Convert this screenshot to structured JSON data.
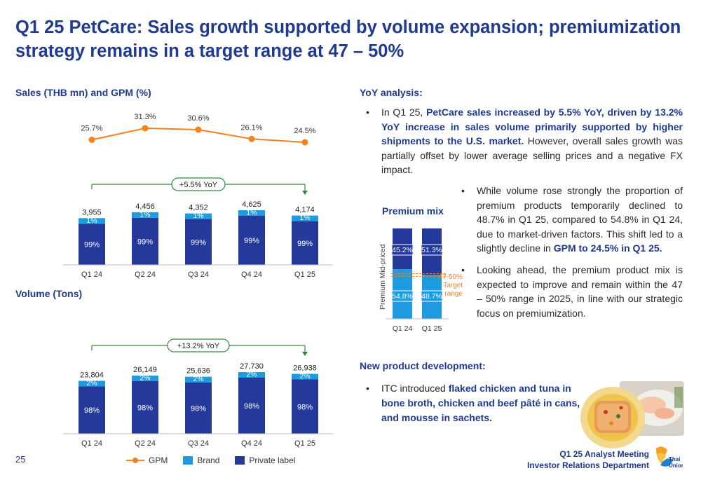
{
  "page": {
    "title": "Q1 25 PetCare: Sales growth supported by volume expansion; premiumization strategy remains in a target range at 47 – 50%",
    "page_number": "25",
    "footer_line1": "Q1 25 Analyst Meeting",
    "footer_line2": "Investor Relations Department",
    "logo_text": "Thai Union"
  },
  "left": {
    "sales_title": "Sales (THB mn) and GPM (%)",
    "volume_title": "Volume (Tons)",
    "legend": [
      "GPM",
      "Brand",
      "Private label"
    ]
  },
  "chart_data": [
    {
      "type": "line",
      "name": "gpm",
      "categories": [
        "Q1 24",
        "Q2 24",
        "Q3 24",
        "Q4 24",
        "Q1 25"
      ],
      "series": [
        {
          "name": "GPM",
          "values": [
            25.7,
            31.3,
            30.6,
            26.1,
            24.5
          ],
          "labels": [
            "25.7%",
            "31.3%",
            "30.6%",
            "26.1%",
            "24.5%"
          ]
        }
      ]
    },
    {
      "type": "bar",
      "name": "sales",
      "categories": [
        "Q1 24",
        "Q2 24",
        "Q3 24",
        "Q4 24",
        "Q1 25"
      ],
      "totals": [
        3955,
        4456,
        4352,
        4625,
        4174
      ],
      "total_labels": [
        "3,955",
        "4,456",
        "4,352",
        "4,625",
        "4,174"
      ],
      "series": [
        {
          "name": "Private label",
          "values": [
            99,
            99,
            99,
            99,
            99
          ],
          "labels": [
            "99%",
            "99%",
            "99%",
            "99%",
            "99%"
          ]
        },
        {
          "name": "Brand",
          "values": [
            1,
            1,
            1,
            1,
            1
          ],
          "labels": [
            "1%",
            "1%",
            "1%",
            "1%",
            "1%"
          ]
        }
      ],
      "growth_label": "+5.5% YoY"
    },
    {
      "type": "bar",
      "name": "volume",
      "categories": [
        "Q1 24",
        "Q2 24",
        "Q3 24",
        "Q4 24",
        "Q1 25"
      ],
      "totals": [
        23804,
        26149,
        25636,
        27730,
        26938
      ],
      "total_labels": [
        "23,804",
        "26,149",
        "25,636",
        "27,730",
        "26,938"
      ],
      "series": [
        {
          "name": "Private label",
          "values": [
            98,
            98,
            98,
            98,
            98
          ],
          "labels": [
            "98%",
            "98%",
            "98%",
            "98%",
            "98%"
          ]
        },
        {
          "name": "Brand",
          "values": [
            2,
            2,
            2,
            2,
            2
          ],
          "labels": [
            "2%",
            "2%",
            "2%",
            "2%",
            "2%"
          ]
        }
      ],
      "growth_label": "+13.2% YoY"
    },
    {
      "type": "bar",
      "name": "premium_mix",
      "title": "Premium mix",
      "categories": [
        "Q1 24",
        "Q1 25"
      ],
      "series": [
        {
          "name": "Premium",
          "values": [
            54.8,
            48.7
          ],
          "labels": [
            "54.8%",
            "48.7%"
          ]
        },
        {
          "name": "Mid-priced",
          "values": [
            45.2,
            51.3
          ],
          "labels": [
            "45.2%",
            "51.3%"
          ]
        }
      ],
      "target_range": [
        47,
        50
      ],
      "target_label_1": "47-50%",
      "target_label_2": "Target",
      "target_label_3": "range"
    }
  ],
  "colors": {
    "title": "#1f3a8f",
    "private_label": "#25399a",
    "brand": "#1e9be0",
    "gpm": "#f5821f",
    "growth_line": "#2e8b3a",
    "target": "#f5821f",
    "mix_top": "#25399a",
    "mix_bottom": "#1e9be0"
  },
  "right": {
    "yoy_title": "YoY analysis:",
    "p1_a": "In Q1 25, ",
    "p1_b": "PetCare sales increased by 5.5% YoY, driven by 13.2% YoY increase in sales volume primarily supported by higher shipments to the U.S. market.",
    "p1_c": " However, overall sales growth was partially offset by lower average selling prices and a negative FX impact.",
    "p2_a": "While volume rose strongly the proportion of premium products temporarily declined to 48.7% in Q1 25, compared to 54.8% in Q1 24, due to market-driven factors. This shift led to a slightly decline in ",
    "p2_b": "GPM to 24.5% in Q1 25.",
    "p3": "Looking ahead, the premium product mix is expected to improve and remain within the 47 – 50% range in 2025, in line with our strategic focus on premiumization.",
    "npd_title": "New product development:",
    "p4_a": "ITC introduced ",
    "p4_b": "flaked chicken and tuna in bone broth, chicken and beef pâté in cans, and mousse in sachets."
  },
  "icons": [
    "bullet-dot",
    "product-photo",
    "thai-union-logo"
  ]
}
